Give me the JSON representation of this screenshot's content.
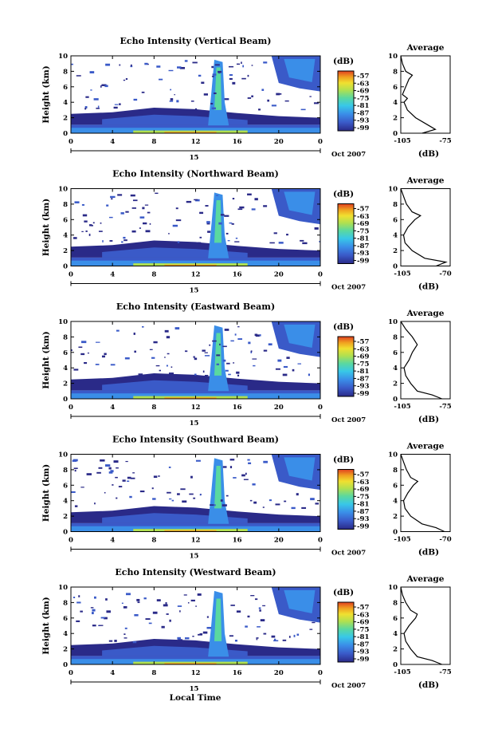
{
  "figure": {
    "xlabel": "Local Time",
    "date_label": "Oct 2007",
    "day_label": "15",
    "cb_unit": "(dB)",
    "avg_title": "Average",
    "avg_xlabel": "(dB)"
  },
  "colors": {
    "scale": [
      "#2a2a88",
      "#3a5ac8",
      "#3a8ee8",
      "#38c8e8",
      "#5ad8a0",
      "#b0e050",
      "#f0e030",
      "#f0a020",
      "#e04020"
    ]
  },
  "chart_data": [
    {
      "type": "heatmap",
      "title": "Echo Intensity (Vertical Beam)",
      "ylabel": "Height (km)",
      "xlim": [
        0,
        24
      ],
      "ylim": [
        0,
        10
      ],
      "x_ticks": [
        "0",
        "4",
        "8",
        "12",
        "16",
        "20",
        "0"
      ],
      "y_ticks": [
        "0",
        "2",
        "4",
        "6",
        "8",
        "10"
      ],
      "colorbar": {
        "unit": "(dB)",
        "ticks": [
          "-57",
          "-63",
          "-69",
          "-75",
          "-81",
          "-87",
          "-93",
          "-99"
        ]
      },
      "average": {
        "title": "Average",
        "xlabel": "(dB)",
        "xlim": [
          -105,
          -75
        ],
        "x_ticks": [
          "-105",
          "-75"
        ],
        "profile": [
          [
            -92,
            0
          ],
          [
            -84,
            0.5
          ],
          [
            -88,
            1
          ],
          [
            -96,
            2
          ],
          [
            -101,
            3
          ],
          [
            -103,
            4
          ],
          [
            -101,
            4.5
          ],
          [
            -104,
            5
          ],
          [
            -102,
            6
          ],
          [
            -100,
            7
          ],
          [
            -98,
            7.5
          ],
          [
            -102,
            8
          ],
          [
            -104,
            9
          ],
          [
            -105,
            10
          ]
        ]
      }
    },
    {
      "type": "heatmap",
      "title": "Echo Intensity (Northward Beam)",
      "ylabel": "Height (km)",
      "xlim": [
        0,
        24
      ],
      "ylim": [
        0,
        10
      ],
      "x_ticks": [
        "0",
        "4",
        "8",
        "12",
        "16",
        "20",
        "0"
      ],
      "y_ticks": [
        "0",
        "2",
        "4",
        "6",
        "8",
        "10"
      ],
      "colorbar": {
        "unit": "(dB)",
        "ticks": [
          "-57",
          "-63",
          "-69",
          "-75",
          "-81",
          "-87",
          "-93",
          "-99"
        ]
      },
      "average": {
        "title": "Average",
        "xlabel": "(dB)",
        "xlim": [
          -105,
          -70
        ],
        "x_ticks": [
          "-105",
          "-70"
        ],
        "profile": [
          [
            -80,
            0
          ],
          [
            -73,
            0.5
          ],
          [
            -88,
            1
          ],
          [
            -97,
            2
          ],
          [
            -102,
            3
          ],
          [
            -103,
            4
          ],
          [
            -100,
            5
          ],
          [
            -95,
            6
          ],
          [
            -91,
            6.5
          ],
          [
            -97,
            7
          ],
          [
            -101,
            8
          ],
          [
            -103,
            9
          ],
          [
            -105,
            10
          ]
        ]
      }
    },
    {
      "type": "heatmap",
      "title": "Echo Intensity (Eastward Beam)",
      "ylabel": "Height (km)",
      "xlim": [
        0,
        24
      ],
      "ylim": [
        0,
        10
      ],
      "x_ticks": [
        "0",
        "4",
        "8",
        "12",
        "16",
        "20",
        "0"
      ],
      "y_ticks": [
        "0",
        "2",
        "4",
        "6",
        "8",
        "10"
      ],
      "colorbar": {
        "unit": "(dB)",
        "ticks": [
          "-57",
          "-63",
          "-69",
          "-75",
          "-81",
          "-87",
          "-93",
          "-99"
        ]
      },
      "average": {
        "title": "Average",
        "xlabel": "(dB)",
        "xlim": [
          -105,
          -75
        ],
        "x_ticks": [
          "-105",
          "-75"
        ],
        "profile": [
          [
            -80,
            0
          ],
          [
            -86,
            0.5
          ],
          [
            -95,
            1
          ],
          [
            -99,
            2
          ],
          [
            -102,
            3
          ],
          [
            -103,
            4
          ],
          [
            -100,
            5
          ],
          [
            -98,
            6
          ],
          [
            -95,
            7
          ],
          [
            -98,
            8
          ],
          [
            -102,
            9
          ],
          [
            -105,
            10
          ]
        ]
      }
    },
    {
      "type": "heatmap",
      "title": "Echo Intensity (Southward Beam)",
      "ylabel": "Height (km)",
      "xlim": [
        0,
        24
      ],
      "ylim": [
        0,
        10
      ],
      "x_ticks": [
        "0",
        "4",
        "8",
        "12",
        "16",
        "20",
        "0"
      ],
      "y_ticks": [
        "0",
        "2",
        "4",
        "6",
        "8",
        "10"
      ],
      "colorbar": {
        "unit": "(dB)",
        "ticks": [
          "-57",
          "-63",
          "-69",
          "-75",
          "-81",
          "-87",
          "-93",
          "-99"
        ]
      },
      "average": {
        "title": "Average",
        "xlabel": "(dB)",
        "xlim": [
          -105,
          -70
        ],
        "x_ticks": [
          "-105",
          "-70"
        ],
        "profile": [
          [
            -74,
            0
          ],
          [
            -80,
            0.5
          ],
          [
            -90,
            1
          ],
          [
            -98,
            2
          ],
          [
            -102,
            3
          ],
          [
            -103,
            4
          ],
          [
            -100,
            5
          ],
          [
            -96,
            6
          ],
          [
            -93,
            6.5
          ],
          [
            -98,
            7
          ],
          [
            -101,
            8
          ],
          [
            -103,
            9
          ],
          [
            -105,
            10
          ]
        ]
      }
    },
    {
      "type": "heatmap",
      "title": "Echo Intensity (Westward Beam)",
      "ylabel": "Height (km)",
      "xlim": [
        0,
        24
      ],
      "ylim": [
        0,
        10
      ],
      "x_ticks": [
        "0",
        "4",
        "8",
        "12",
        "16",
        "20",
        "0"
      ],
      "y_ticks": [
        "0",
        "2",
        "4",
        "6",
        "8",
        "10"
      ],
      "colorbar": {
        "unit": "(dB)",
        "ticks": [
          "-57",
          "-63",
          "-69",
          "-75",
          "-81",
          "-87",
          "-93",
          "-99"
        ]
      },
      "average": {
        "title": "Average",
        "xlabel": "(dB)",
        "xlim": [
          -105,
          -75
        ],
        "x_ticks": [
          "-105",
          "-75"
        ],
        "profile": [
          [
            -80,
            0
          ],
          [
            -86,
            0.5
          ],
          [
            -95,
            1
          ],
          [
            -99,
            2
          ],
          [
            -102,
            3
          ],
          [
            -103,
            4
          ],
          [
            -100,
            5
          ],
          [
            -96,
            6
          ],
          [
            -95,
            6.5
          ],
          [
            -99,
            7
          ],
          [
            -102,
            8
          ],
          [
            -104,
            9
          ],
          [
            -105,
            10
          ]
        ]
      }
    }
  ]
}
